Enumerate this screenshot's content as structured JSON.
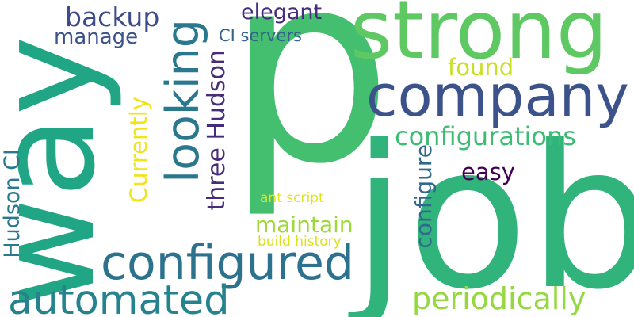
{
  "words": [
    {
      "key": "p",
      "text": "p",
      "color": "#44bf70"
    },
    {
      "key": "job",
      "text": "job",
      "color": "#31b47b"
    },
    {
      "key": "way",
      "text": "way",
      "color": "#21a685"
    },
    {
      "key": "strong",
      "text": "strong",
      "color": "#5ec962"
    },
    {
      "key": "company",
      "text": "company",
      "color": "#3b528b"
    },
    {
      "key": "configured",
      "text": "configured",
      "color": "#2c728e"
    },
    {
      "key": "automated",
      "text": "automated",
      "color": "#26828e"
    },
    {
      "key": "looking",
      "text": "looking",
      "color": "#2a788e"
    },
    {
      "key": "periodically",
      "text": "periodically",
      "color": "#95d840"
    },
    {
      "key": "configurations",
      "text": "configurations",
      "color": "#3dbc74"
    },
    {
      "key": "backup",
      "text": "backup",
      "color": "#3e4a89"
    },
    {
      "key": "elegant",
      "text": "elegant",
      "color": "#472d7b"
    },
    {
      "key": "manage",
      "text": "manage",
      "color": "#3b528b"
    },
    {
      "key": "ci_servers",
      "text": "CI servers",
      "color": "#33638d"
    },
    {
      "key": "found",
      "text": "found",
      "color": "#c8e020"
    },
    {
      "key": "three_hudson",
      "text": "three Hudson",
      "color": "#472c7a"
    },
    {
      "key": "currently",
      "text": "Currently",
      "color": "#f0e51c"
    },
    {
      "key": "hudson_ci",
      "text": "Hudson CI",
      "color": "#2a788e"
    },
    {
      "key": "easy",
      "text": "easy",
      "color": "#440154"
    },
    {
      "key": "configure",
      "text": "configure",
      "color": "#31688e"
    },
    {
      "key": "maintain",
      "text": "maintain",
      "color": "#9dd93b"
    },
    {
      "key": "ant_script",
      "text": "ant script",
      "color": "#e2e418"
    },
    {
      "key": "build_history",
      "text": "build history",
      "color": "#d8e219"
    }
  ]
}
